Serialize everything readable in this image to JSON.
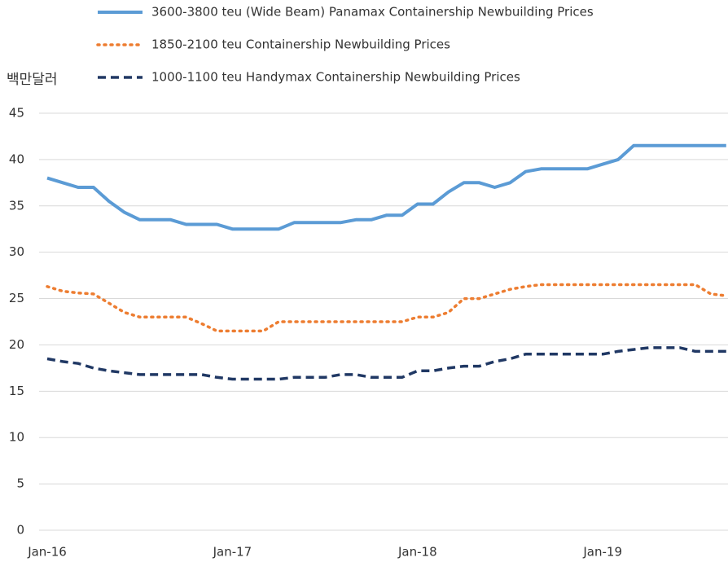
{
  "chart_data": {
    "type": "line",
    "y_label": "백만달러",
    "categories": [
      "Jan-16",
      null,
      null,
      null,
      null,
      null,
      null,
      null,
      null,
      null,
      null,
      null,
      "Jan-17",
      null,
      null,
      null,
      null,
      null,
      null,
      null,
      null,
      null,
      null,
      null,
      "Jan-18",
      null,
      null,
      null,
      null,
      null,
      null,
      null,
      null,
      null,
      null,
      null,
      "Jan-19",
      null,
      null,
      null,
      null,
      null,
      null,
      null,
      null
    ],
    "series": [
      {
        "name": "3600-3800 teu (Wide Beam) Panamax Containership Newbuilding Prices",
        "color": "#5b9bd5",
        "style": "solid",
        "values": [
          38,
          37.5,
          37,
          37,
          35.5,
          34.3,
          33.5,
          33.5,
          33.5,
          33,
          33,
          33,
          32.5,
          32.5,
          32.5,
          32.5,
          33.2,
          33.2,
          33.2,
          33.2,
          33.5,
          33.5,
          34,
          34,
          35.2,
          35.2,
          36.5,
          37.5,
          37.5,
          37,
          37.5,
          38.7,
          39,
          39,
          39,
          39,
          39.5,
          40,
          41.5,
          41.5,
          41.5,
          41.5,
          41.5,
          41.5,
          41.5
        ]
      },
      {
        "name": "1850-2100 teu  Containership Newbuilding Prices",
        "color": "#ed7d31",
        "style": "dotted",
        "values": [
          26.3,
          25.8,
          25.6,
          25.5,
          24.5,
          23.5,
          23,
          23,
          23,
          23,
          22.3,
          21.5,
          21.5,
          21.5,
          21.5,
          22.5,
          22.5,
          22.5,
          22.5,
          22.5,
          22.5,
          22.5,
          22.5,
          22.5,
          23,
          23,
          23.5,
          25,
          25,
          25.5,
          26,
          26.3,
          26.5,
          26.5,
          26.5,
          26.5,
          26.5,
          26.5,
          26.5,
          26.5,
          26.5,
          26.5,
          26.5,
          25.5,
          25.3
        ]
      },
      {
        "name": "1000-1100 teu Handymax Containership Newbuilding Prices",
        "color": "#203864",
        "style": "dashed",
        "values": [
          18.5,
          18.2,
          18,
          17.5,
          17.2,
          17,
          16.8,
          16.8,
          16.8,
          16.8,
          16.8,
          16.5,
          16.3,
          16.3,
          16.3,
          16.3,
          16.5,
          16.5,
          16.5,
          16.8,
          16.8,
          16.5,
          16.5,
          16.5,
          17.2,
          17.2,
          17.5,
          17.7,
          17.7,
          18.2,
          18.5,
          19,
          19,
          19,
          19,
          19,
          19,
          19.3,
          19.5,
          19.7,
          19.7,
          19.7,
          19.3,
          19.3,
          19.3
        ]
      }
    ],
    "ylim": [
      0,
      45
    ],
    "yticks": [
      0,
      5,
      10,
      15,
      20,
      25,
      30,
      35,
      40,
      45
    ],
    "grid": true
  }
}
